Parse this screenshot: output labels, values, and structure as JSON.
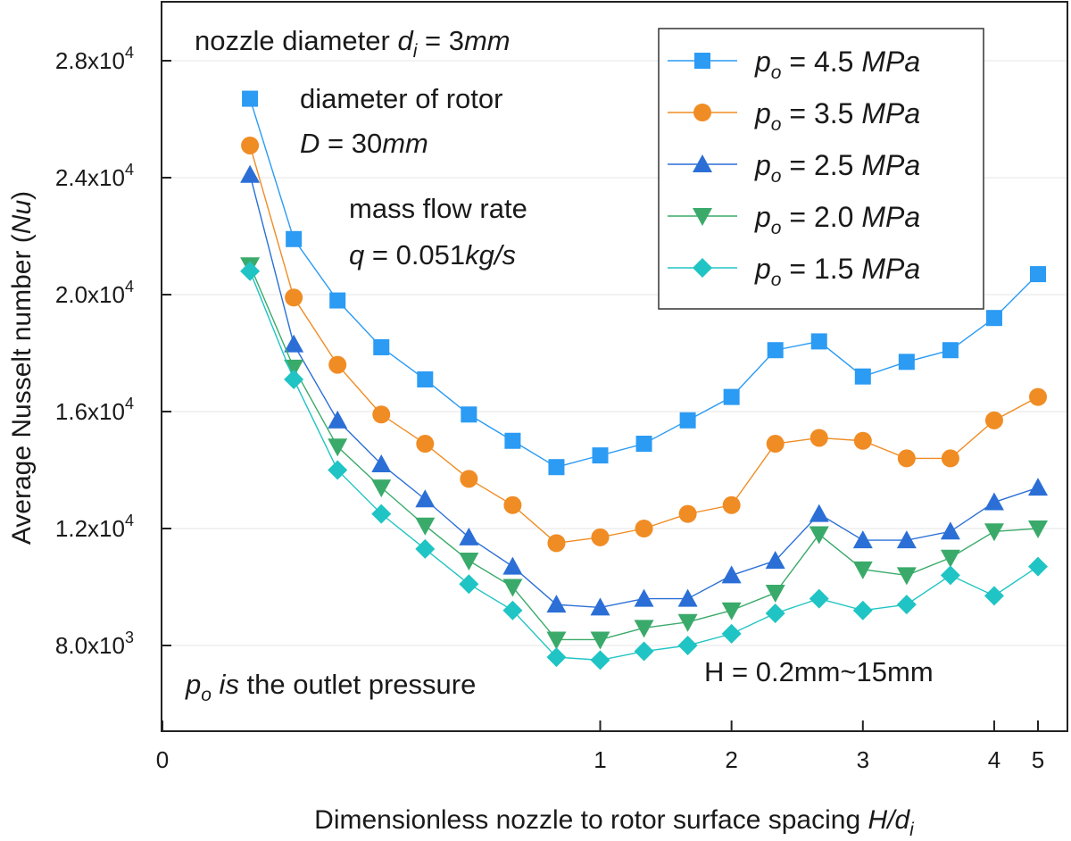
{
  "chart_data": {
    "type": "line",
    "title": "",
    "xlabel_main": "Dimensionless nozzle to rotor surface spacing ",
    "xlabel_var": "H/d",
    "xlabel_sub": "i",
    "ylabel_main": "Average Nusselt number (",
    "ylabel_var": "Nu",
    "ylabel_end": ")",
    "ylim": [
      5000,
      30000
    ],
    "x_ticks": [
      {
        "label": "0",
        "pos": 0
      },
      {
        "label": "1",
        "pos": 10
      },
      {
        "label": "2",
        "pos": 13
      },
      {
        "label": "3",
        "pos": 16
      },
      {
        "label": "4",
        "pos": 19
      },
      {
        "label": "5",
        "pos": 20
      }
    ],
    "y_ticks": [
      {
        "value": 8000,
        "mantissa": "8.0x10",
        "exp": "3"
      },
      {
        "value": 12000,
        "mantissa": "1.2x10",
        "exp": "4"
      },
      {
        "value": 16000,
        "mantissa": "1.6x10",
        "exp": "4"
      },
      {
        "value": 20000,
        "mantissa": "2.0x10",
        "exp": "4"
      },
      {
        "value": 24000,
        "mantissa": "2.4x10",
        "exp": "4"
      },
      {
        "value": 28000,
        "mantissa": "2.8x10",
        "exp": "4"
      }
    ],
    "x_positions": [
      2,
      3,
      4,
      5,
      6,
      7,
      8,
      9,
      10,
      11,
      12,
      13,
      14,
      15,
      16,
      17,
      18,
      19,
      20
    ],
    "series": [
      {
        "name": "4.5",
        "color": "#2b9bf4",
        "marker": "square",
        "values": [
          26700,
          21900,
          19800,
          18200,
          17100,
          15900,
          15000,
          14100,
          14500,
          14900,
          15700,
          16500,
          18100,
          18400,
          17200,
          17700,
          18100,
          19200,
          20700
        ]
      },
      {
        "name": "3.5",
        "color": "#f08c24",
        "marker": "circle",
        "values": [
          25100,
          19900,
          17600,
          15900,
          14900,
          13700,
          12800,
          11500,
          11700,
          12000,
          12500,
          12800,
          14900,
          15100,
          15000,
          14400,
          14400,
          15700,
          16500
        ]
      },
      {
        "name": "2.5",
        "color": "#2b6fd6",
        "marker": "triangle-up",
        "values": [
          24100,
          18300,
          15700,
          14200,
          13000,
          11700,
          10700,
          9400,
          9300,
          9600,
          9600,
          10400,
          10900,
          12500,
          11600,
          11600,
          11900,
          12900,
          13400
        ]
      },
      {
        "name": "2.0",
        "color": "#3aaa6a",
        "marker": "triangle-down",
        "values": [
          21000,
          17500,
          14800,
          13400,
          12100,
          10900,
          10000,
          8200,
          8200,
          8600,
          8800,
          9200,
          9800,
          11800,
          10600,
          10400,
          11000,
          11900,
          12000
        ]
      },
      {
        "name": "1.5",
        "color": "#20c4c4",
        "marker": "diamond",
        "values": [
          20800,
          17100,
          14000,
          12500,
          11300,
          10100,
          9200,
          7600,
          7500,
          7800,
          8000,
          8400,
          9100,
          9600,
          9200,
          9400,
          10400,
          9700,
          10700
        ]
      }
    ],
    "legend_prefix": "p",
    "legend_sub": "o",
    "legend_eq": " = ",
    "legend_unit": " MPa",
    "annotations": {
      "nozzle_prefix": "nozzle diameter ",
      "nozzle_var": "d",
      "nozzle_sub": "i",
      "nozzle_eq": " =  3",
      "nozzle_unit": "mm",
      "rotor_label": "diameter of rotor",
      "rotor_var": "D",
      "rotor_eq": " = 30",
      "rotor_unit": "mm",
      "mass_label": "mass flow rate",
      "mass_var": "q",
      "mass_eq": " = 0.051",
      "mass_unit": "kg/s",
      "outlet_var": "p",
      "outlet_sub": "o",
      "outlet_is": " is",
      "outlet_rest": " the outlet pressure",
      "range_text": "H = 0.2mm~15mm"
    }
  }
}
